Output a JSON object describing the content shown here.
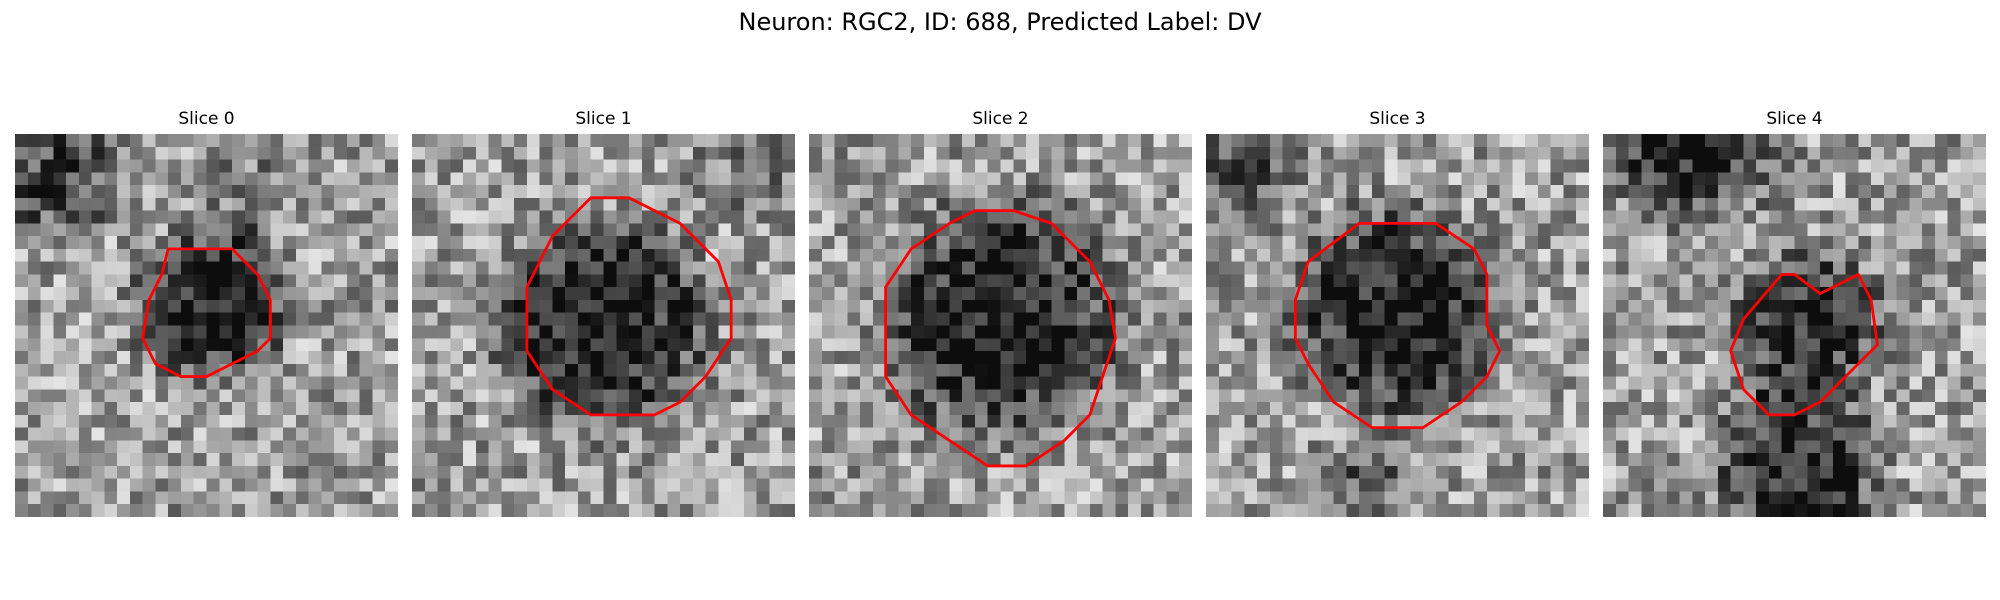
{
  "figure": {
    "title": "Neuron: RGC2, ID: 688, Predicted Label: DV"
  },
  "panels": [
    {
      "title": "Slice 0"
    },
    {
      "title": "Slice 1"
    },
    {
      "title": "Slice 2"
    },
    {
      "title": "Slice 3"
    },
    {
      "title": "Slice 4"
    }
  ],
  "colors": {
    "contour": "#ff0000",
    "colormap": "grayscale"
  }
}
